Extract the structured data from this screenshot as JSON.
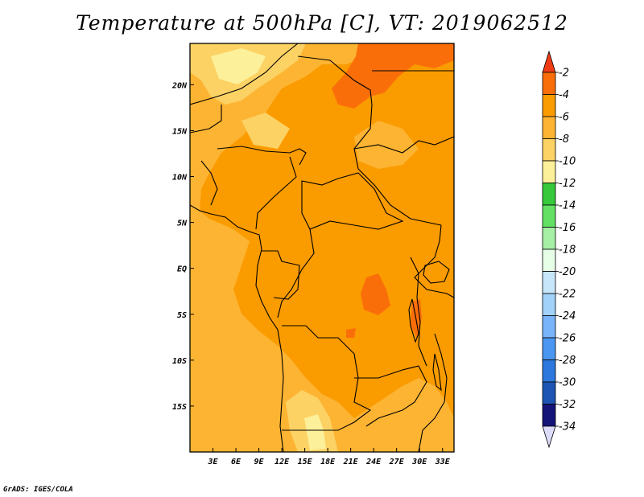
{
  "title": "Temperature at 500hPa [C], VT: 2019062512",
  "credit": "GrADS: IGES/COLA",
  "map": {
    "lon_range": [
      0,
      34.5
    ],
    "lat_range": [
      -20,
      24.5
    ],
    "lon_ticks": [
      "3E",
      "6E",
      "9E",
      "12E",
      "15E",
      "18E",
      "21E",
      "24E",
      "27E",
      "30E",
      "33E"
    ],
    "lat_ticks": [
      "20N",
      "15N",
      "10N",
      "5N",
      "EQ",
      "5S",
      "10S",
      "15S"
    ]
  },
  "colorbar": {
    "labels": [
      "-2",
      "-4",
      "-6",
      "-8",
      "-10",
      "-12",
      "-14",
      "-16",
      "-18",
      "-20",
      "-22",
      "-24",
      "-26",
      "-28",
      "-30",
      "-32",
      "-34"
    ],
    "colors": [
      "#f03c14",
      "#fa6e0a",
      "#fa9b00",
      "#fdb432",
      "#fcd264",
      "#fdf09a",
      "#37c83c",
      "#64e164",
      "#a5f0a5",
      "#e6ffe6",
      "#c8e6fa",
      "#a0d2fa",
      "#78b4fa",
      "#4b96f0",
      "#2d78dc",
      "#1e55b4",
      "#141478",
      "#dcdcfa"
    ]
  }
}
